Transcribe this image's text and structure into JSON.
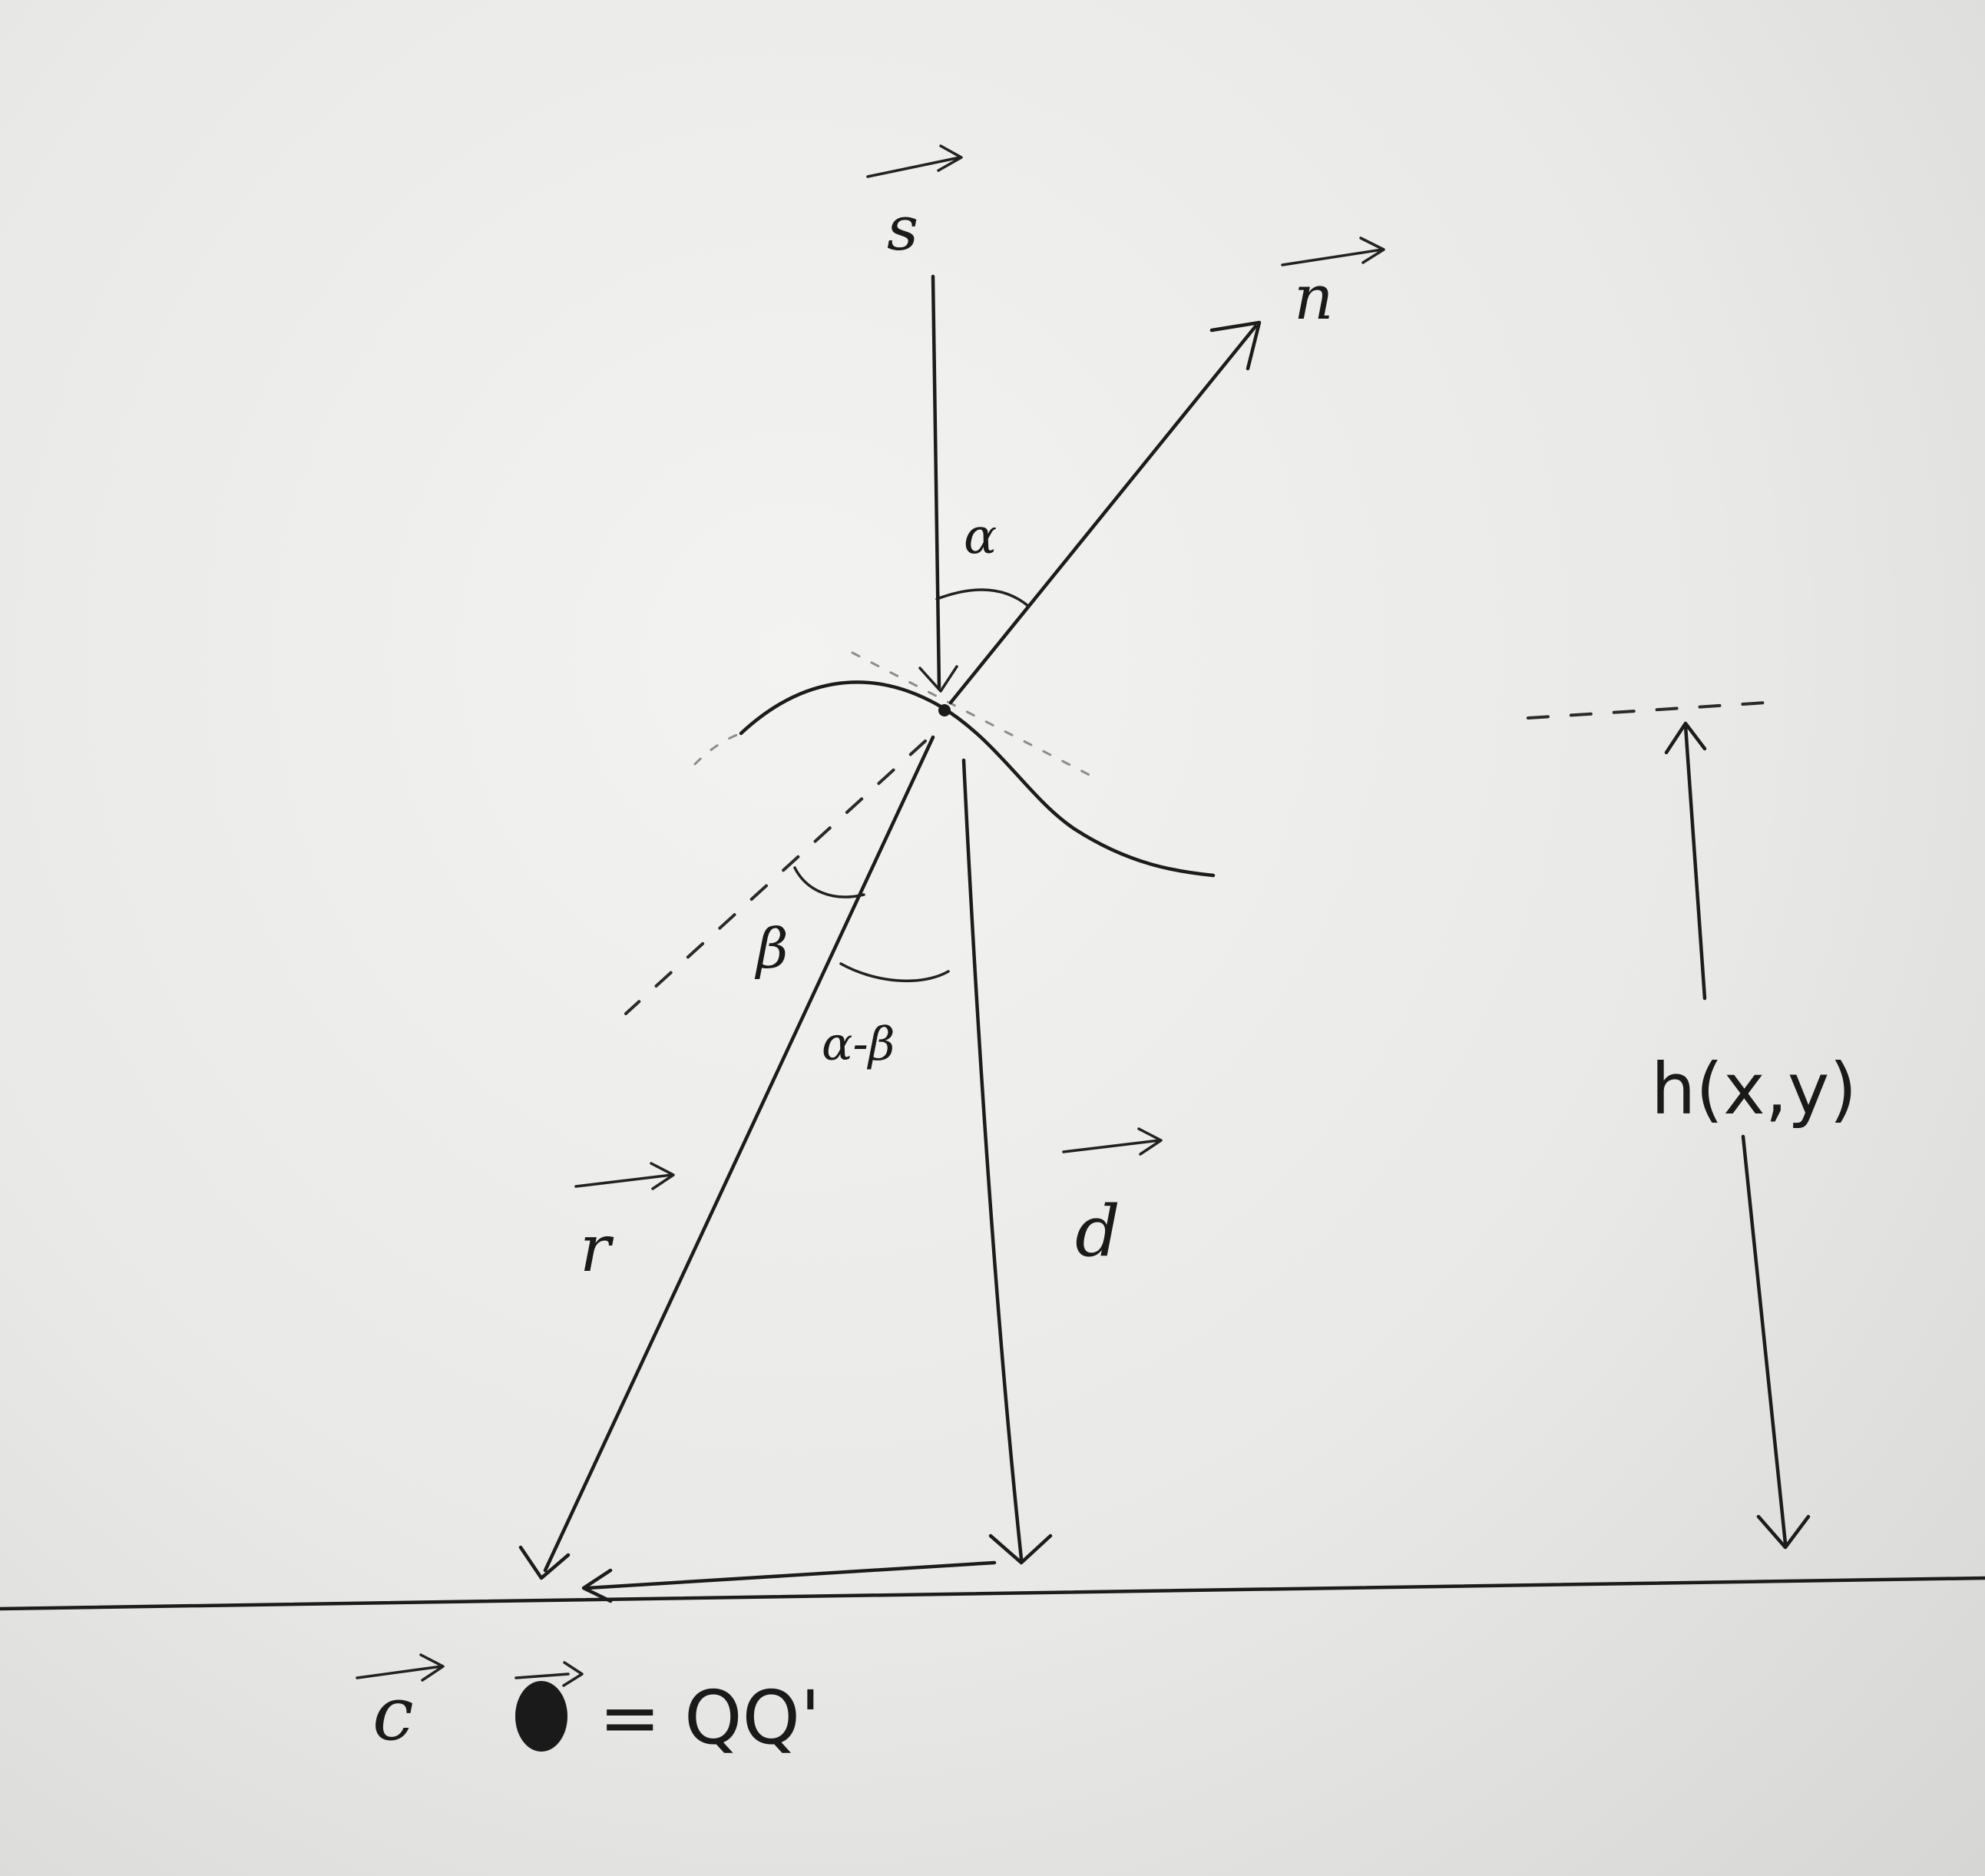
{
  "labels": {
    "s": "s",
    "n": "n",
    "r": "r",
    "d": "d",
    "c": "c",
    "alpha": "α",
    "beta": "β",
    "alpha_minus_beta": "α-β",
    "height": "h(x,y)",
    "equation": "= QQ'"
  },
  "colors": {
    "paper": "#eeeeec",
    "ink": "#1c1c1c"
  }
}
